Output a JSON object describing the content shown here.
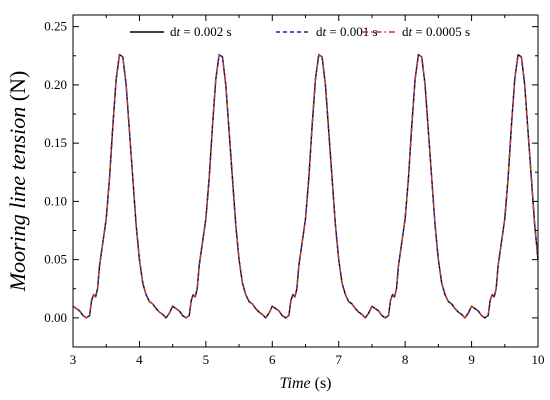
{
  "chart_data": {
    "type": "line",
    "xlabel": {
      "italic": "Time",
      "rest": " (s)"
    },
    "ylabel": {
      "italic": "Mooring line tension",
      "rest": " (N)"
    },
    "xlim": [
      3,
      10
    ],
    "ylim": [
      -0.025,
      0.26
    ],
    "x_ticks": [
      3,
      4,
      5,
      6,
      7,
      8,
      9,
      10
    ],
    "y_ticks": [
      0.0,
      0.05,
      0.1,
      0.15,
      0.2,
      0.25
    ],
    "x_tick_labels": [
      "3",
      "4",
      "5",
      "6",
      "7",
      "8",
      "9",
      "10"
    ],
    "y_tick_labels": [
      "0.00",
      "0.05",
      "0.10",
      "0.15",
      "0.20",
      "0.25"
    ],
    "grid": false,
    "legend_position": "top",
    "period": 1.5,
    "waveform_t0": 3.0,
    "waveform": {
      "t": [
        0.0,
        0.05,
        0.1,
        0.15,
        0.2,
        0.25,
        0.28,
        0.31,
        0.34,
        0.37,
        0.4,
        0.45,
        0.5,
        0.55,
        0.6,
        0.65,
        0.7,
        0.75,
        0.8,
        0.85,
        0.9,
        0.95,
        1.0,
        1.05,
        1.1,
        1.15,
        1.2,
        1.25,
        1.3,
        1.35,
        1.4,
        1.45,
        1.5
      ],
      "y": [
        0.01,
        0.008,
        0.006,
        0.002,
        0.0,
        0.002,
        0.015,
        0.02,
        0.018,
        0.025,
        0.045,
        0.065,
        0.085,
        0.12,
        0.165,
        0.205,
        0.226,
        0.224,
        0.2,
        0.16,
        0.12,
        0.08,
        0.05,
        0.03,
        0.02,
        0.014,
        0.012,
        0.008,
        0.005,
        0.003,
        0.0,
        0.004,
        0.01
      ]
    },
    "series": [
      {
        "name": {
          "d": "d",
          "t": "t",
          "rest": " = 0.002 s"
        },
        "color": "#000000",
        "dash": "solid"
      },
      {
        "name": {
          "d": "d",
          "t": "t",
          "rest": " = 0.001 s"
        },
        "color": "#1f1fa8",
        "dash": "dashed"
      },
      {
        "name": {
          "d": "d",
          "t": "t",
          "rest": " = 0.0005 s"
        },
        "color": "#c0392b",
        "dash": "dashdot"
      }
    ]
  }
}
